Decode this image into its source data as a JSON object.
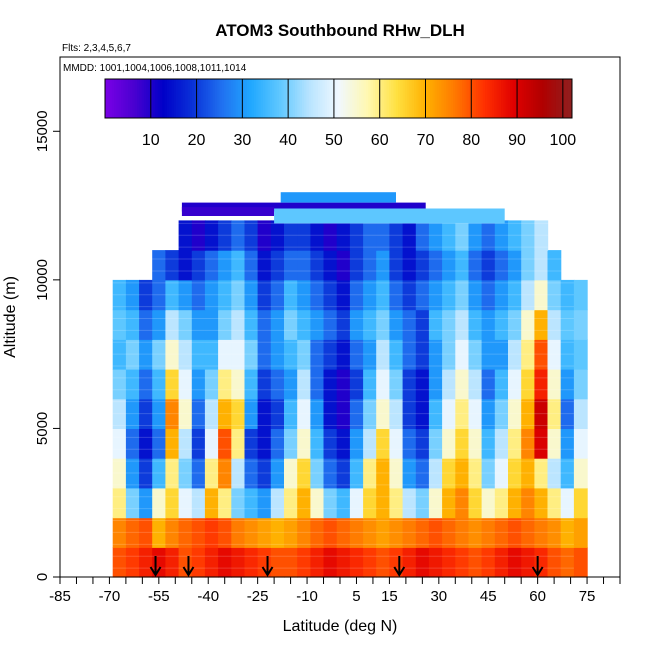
{
  "chart_data": {
    "type": "heatmap",
    "title": "ATOM3 Southbound RHw_DLH",
    "flights_label": "Flts: 2,3,4,5,6,7",
    "dates_label": "MMDD: 1001,1004,1006,1008,1011,1014",
    "xlabel": "Latitude (deg N)",
    "ylabel": "Altitude (m)",
    "xlim": [
      -85,
      85
    ],
    "ylim": [
      0,
      17500
    ],
    "x_ticks": [
      -85,
      -70,
      -55,
      -40,
      -25,
      -10,
      5,
      15,
      30,
      45,
      60,
      75
    ],
    "y_ticks": [
      0,
      5000,
      10000,
      15000
    ],
    "colorbar": {
      "min": 0,
      "max": 102,
      "ticks": [
        10,
        20,
        30,
        40,
        50,
        60,
        70,
        80,
        90,
        100
      ],
      "colors": [
        "#7a00e6",
        "#4a00d0",
        "#0000c8",
        "#0a32d8",
        "#2070f0",
        "#20a8ff",
        "#60c8ff",
        "#b8e4ff",
        "#f0f8ff",
        "#fff8b0",
        "#ffe040",
        "#ffb000",
        "#ff7800",
        "#ff3000",
        "#e00000",
        "#b00000",
        "#902020"
      ]
    },
    "profile_latitudes": [
      -56,
      -46,
      -22,
      18,
      60
    ],
    "latitude_bins": [
      -67,
      -63,
      -59,
      -55,
      -51,
      -47,
      -43,
      -39,
      -35,
      -31,
      -27,
      -23,
      -19,
      -15,
      -11,
      -7,
      -3,
      1,
      5,
      9,
      13,
      17,
      21,
      25,
      29,
      33,
      37,
      41,
      45,
      49,
      53,
      57,
      61,
      65,
      69,
      73
    ],
    "altitude_bins_km": [
      0.5,
      1.5,
      2.5,
      3.5,
      4.5,
      5.5,
      6.5,
      7.5,
      8.5,
      9.5,
      10.5,
      11.5,
      12.5
    ],
    "rh_grid": [
      [
        80,
        82,
        85,
        88,
        85,
        80,
        82,
        85,
        88,
        86,
        84,
        82,
        80,
        80,
        82,
        85,
        88,
        86,
        84,
        82,
        80,
        82,
        85,
        88,
        86,
        84,
        82,
        80,
        82,
        85,
        88,
        86,
        84,
        80,
        78,
        80
      ],
      [
        75,
        78,
        80,
        70,
        75,
        78,
        80,
        82,
        80,
        76,
        74,
        72,
        70,
        72,
        75,
        78,
        80,
        78,
        76,
        74,
        72,
        74,
        76,
        78,
        80,
        78,
        76,
        74,
        76,
        78,
        80,
        78,
        76,
        74,
        70,
        72
      ],
      [
        60,
        40,
        30,
        55,
        65,
        50,
        45,
        70,
        60,
        40,
        35,
        30,
        45,
        60,
        70,
        55,
        40,
        35,
        50,
        65,
        70,
        60,
        45,
        40,
        55,
        70,
        75,
        65,
        55,
        60,
        70,
        75,
        70,
        60,
        50,
        65
      ],
      [
        55,
        30,
        20,
        35,
        60,
        40,
        25,
        60,
        75,
        45,
        25,
        20,
        30,
        55,
        65,
        40,
        25,
        20,
        35,
        60,
        70,
        55,
        30,
        25,
        45,
        65,
        70,
        60,
        40,
        50,
        65,
        70,
        60,
        45,
        35,
        55
      ],
      [
        50,
        25,
        15,
        25,
        70,
        45,
        20,
        50,
        80,
        60,
        20,
        15,
        25,
        40,
        55,
        35,
        20,
        15,
        30,
        45,
        65,
        50,
        25,
        20,
        40,
        55,
        65,
        55,
        35,
        45,
        60,
        75,
        90,
        55,
        30,
        50
      ],
      [
        45,
        30,
        20,
        30,
        75,
        55,
        25,
        45,
        70,
        65,
        30,
        15,
        20,
        35,
        50,
        30,
        15,
        10,
        25,
        40,
        55,
        45,
        20,
        15,
        35,
        50,
        60,
        50,
        30,
        40,
        55,
        70,
        92,
        60,
        25,
        45
      ],
      [
        40,
        35,
        25,
        35,
        65,
        50,
        30,
        40,
        60,
        55,
        35,
        20,
        25,
        30,
        45,
        25,
        15,
        10,
        20,
        35,
        50,
        40,
        20,
        15,
        30,
        45,
        55,
        45,
        25,
        35,
        50,
        65,
        85,
        55,
        30,
        40
      ],
      [
        35,
        40,
        30,
        40,
        55,
        45,
        35,
        35,
        50,
        50,
        40,
        25,
        30,
        35,
        40,
        25,
        20,
        15,
        25,
        30,
        45,
        35,
        25,
        20,
        30,
        40,
        50,
        40,
        30,
        30,
        45,
        60,
        80,
        50,
        35,
        38
      ],
      [
        38,
        35,
        25,
        30,
        45,
        40,
        30,
        30,
        40,
        45,
        35,
        25,
        30,
        40,
        35,
        30,
        25,
        20,
        30,
        35,
        40,
        30,
        25,
        20,
        35,
        40,
        45,
        35,
        30,
        35,
        40,
        55,
        70,
        45,
        38,
        40
      ],
      [
        35,
        30,
        20,
        25,
        35,
        30,
        25,
        30,
        35,
        40,
        30,
        20,
        25,
        35,
        30,
        25,
        20,
        15,
        25,
        30,
        35,
        25,
        20,
        25,
        30,
        35,
        40,
        30,
        25,
        30,
        35,
        45,
        55,
        40,
        35,
        38
      ],
      [
        null,
        null,
        null,
        25,
        20,
        15,
        20,
        25,
        30,
        35,
        25,
        15,
        20,
        25,
        25,
        20,
        15,
        10,
        20,
        25,
        30,
        20,
        15,
        20,
        25,
        30,
        35,
        25,
        20,
        25,
        30,
        40,
        45,
        35,
        null,
        null
      ],
      [
        null,
        null,
        null,
        null,
        null,
        15,
        10,
        15,
        20,
        25,
        20,
        10,
        15,
        20,
        20,
        15,
        10,
        15,
        20,
        25,
        25,
        20,
        15,
        25,
        30,
        35,
        40,
        30,
        25,
        30,
        35,
        40,
        45,
        null,
        null,
        null
      ],
      [
        null,
        null,
        null,
        null,
        null,
        null,
        null,
        null,
        null,
        null,
        null,
        null,
        null,
        null,
        null,
        null,
        null,
        null,
        null,
        null,
        null,
        null,
        null,
        null,
        null,
        null,
        null,
        null,
        null,
        null,
        null,
        null,
        null,
        null,
        null,
        null
      ]
    ],
    "top_row_ranges": [
      {
        "lat": [
          -48,
          26
        ],
        "alt_km": [
          12.3,
          12.6
        ],
        "rh": 10
      },
      {
        "lat": [
          -18,
          17
        ],
        "alt_km": [
          12.6,
          12.95
        ],
        "rh": 30
      },
      {
        "lat": [
          -48,
          -20
        ],
        "alt_km": [
          12.15,
          12.45
        ],
        "rh": 8
      },
      {
        "lat": [
          -20,
          50
        ],
        "alt_km": [
          11.9,
          12.4
        ],
        "rh": 38
      }
    ]
  }
}
